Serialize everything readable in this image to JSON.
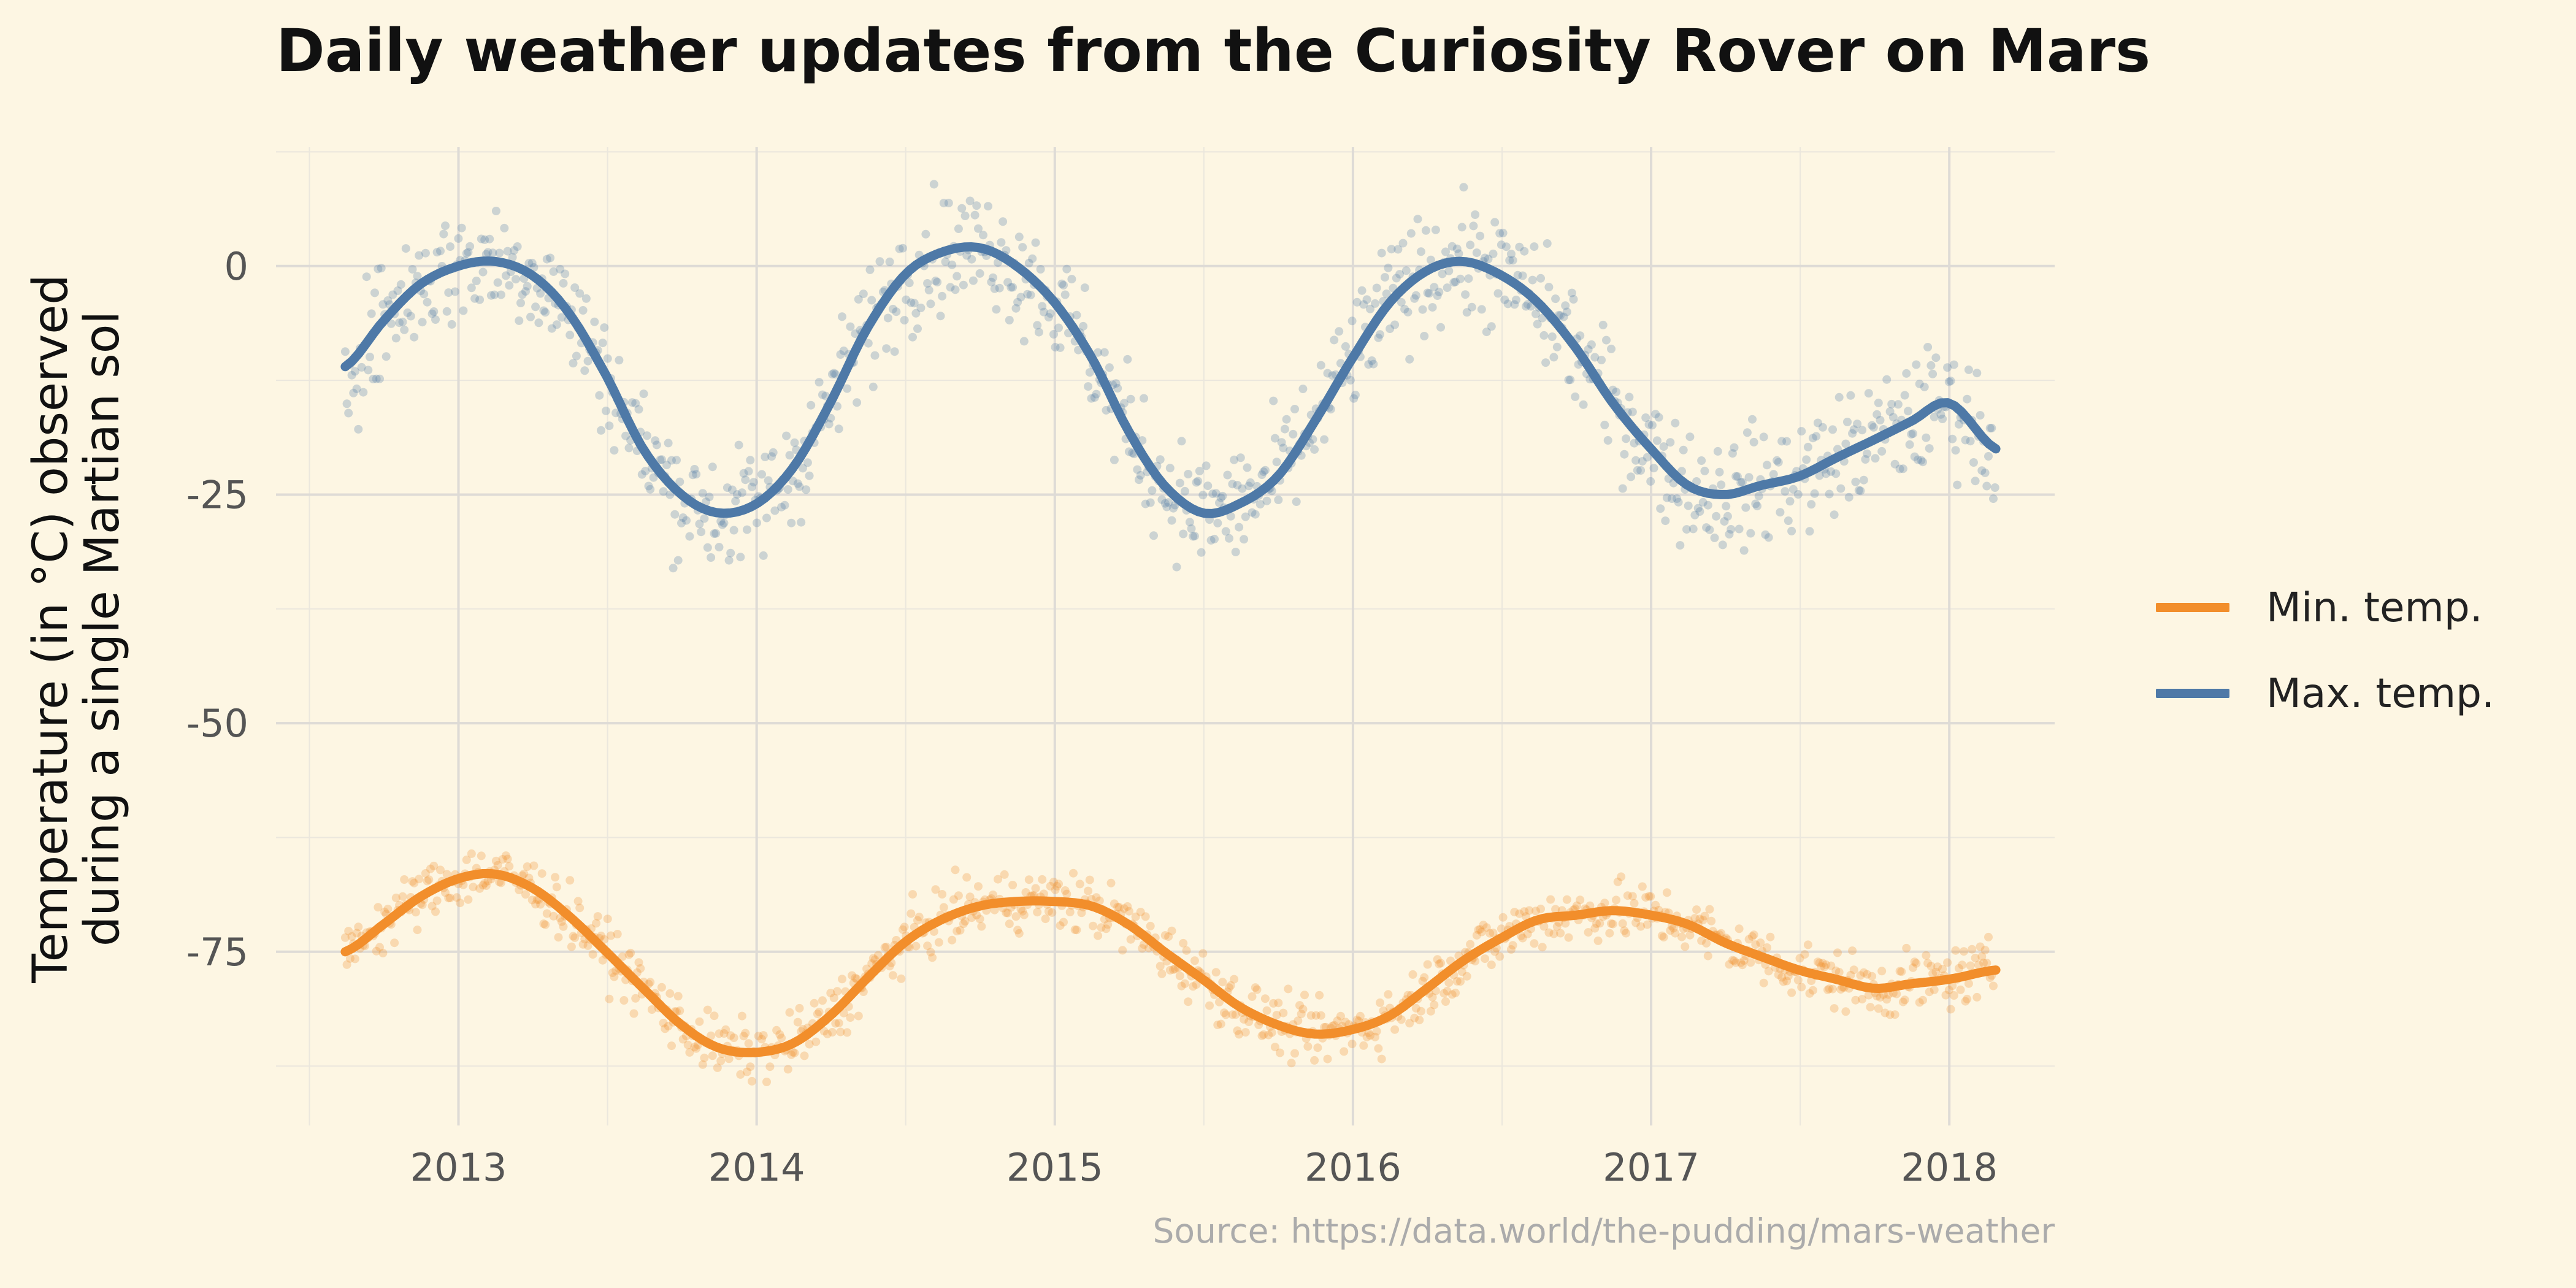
{
  "chart_data": {
    "type": "scatter",
    "title": "Daily weather updates from the Curiosity Rover on Mars",
    "xlabel": "",
    "ylabel": [
      "Temperature (in °C) observed",
      "during a single Martian sol"
    ],
    "caption": "Source: https://data.world/the-pudding/mars-weather",
    "x_ticks": [
      "2013",
      "2014",
      "2015",
      "2016",
      "2017",
      "2018"
    ],
    "y_ticks": [
      "0",
      "-25",
      "-50",
      "-75"
    ],
    "xlim": [
      "2012-05-22",
      "2018-05-10"
    ],
    "ylim": [
      -94,
      13
    ],
    "grid": true,
    "legend_position": "right",
    "legend": [
      {
        "name": "Min. temp.",
        "color": "#f28e2b"
      },
      {
        "name": "Max. temp.",
        "color": "#4e79a7"
      }
    ],
    "series": [
      {
        "name": "Max. temp.",
        "color": "#4e79a7",
        "mark": "points with smoothed line",
        "x": [
          "2012-08-15",
          "2012-10-01",
          "2012-11-15",
          "2013-01-01",
          "2013-02-15",
          "2013-04-01",
          "2013-05-15",
          "2013-07-01",
          "2013-08-15",
          "2013-10-01",
          "2013-11-15",
          "2014-01-01",
          "2014-02-15",
          "2014-04-01",
          "2014-05-15",
          "2014-07-01",
          "2014-08-15",
          "2014-10-01",
          "2014-11-15",
          "2015-01-01",
          "2015-02-15",
          "2015-04-01",
          "2015-05-15",
          "2015-07-01",
          "2015-08-15",
          "2015-10-01",
          "2015-11-15",
          "2016-01-01",
          "2016-02-15",
          "2016-04-01",
          "2016-05-15",
          "2016-07-01",
          "2016-08-15",
          "2016-10-01",
          "2016-11-15",
          "2017-01-01",
          "2017-02-15",
          "2017-04-01",
          "2017-05-15",
          "2017-07-01",
          "2017-08-15",
          "2017-10-01",
          "2017-11-15",
          "2018-01-01",
          "2018-02-27"
        ],
        "smooth": [
          -11,
          -6,
          -2,
          0,
          0.5,
          -1,
          -5,
          -12,
          -20,
          -25,
          -27,
          -26,
          -22,
          -15,
          -7,
          -1,
          1.5,
          2,
          0,
          -4,
          -10,
          -18,
          -24,
          -27,
          -26,
          -23,
          -17,
          -10,
          -4,
          -0.5,
          0.5,
          -1,
          -4,
          -9,
          -15,
          -20,
          -24,
          -25,
          -24,
          -23,
          -21,
          -19,
          -17,
          -15,
          -20
        ],
        "observed_range_min": -35,
        "observed_range_max": 11
      },
      {
        "name": "Min. temp.",
        "color": "#f28e2b",
        "mark": "points with smoothed line",
        "x": [
          "2012-08-15",
          "2012-10-01",
          "2012-11-15",
          "2013-01-01",
          "2013-02-15",
          "2013-04-01",
          "2013-05-15",
          "2013-07-01",
          "2013-08-15",
          "2013-10-01",
          "2013-11-15",
          "2014-01-01",
          "2014-02-15",
          "2014-04-01",
          "2014-05-15",
          "2014-07-01",
          "2014-08-15",
          "2014-10-01",
          "2014-11-15",
          "2015-01-01",
          "2015-02-15",
          "2015-04-01",
          "2015-05-15",
          "2015-07-01",
          "2015-08-15",
          "2015-10-01",
          "2015-11-15",
          "2016-01-01",
          "2016-02-15",
          "2016-04-01",
          "2016-05-15",
          "2016-07-01",
          "2016-08-15",
          "2016-10-01",
          "2016-11-15",
          "2017-01-01",
          "2017-02-15",
          "2017-04-01",
          "2017-05-15",
          "2017-07-01",
          "2017-08-15",
          "2017-10-01",
          "2017-11-15",
          "2018-01-01",
          "2018-02-27"
        ],
        "smooth": [
          -75,
          -72,
          -69,
          -67,
          -66.5,
          -68,
          -71,
          -75,
          -79,
          -83,
          -85.5,
          -86,
          -85,
          -82,
          -78,
          -74,
          -71.5,
          -70,
          -69.5,
          -69.5,
          -70,
          -72,
          -75,
          -78,
          -81,
          -83,
          -84,
          -83.5,
          -82,
          -79,
          -76,
          -73.5,
          -71.5,
          -71,
          -70.5,
          -71,
          -72,
          -74,
          -75.5,
          -77,
          -78,
          -79,
          -78.5,
          -78,
          -77
        ],
        "observed_range_min": -90,
        "observed_range_max": -62
      }
    ]
  }
}
